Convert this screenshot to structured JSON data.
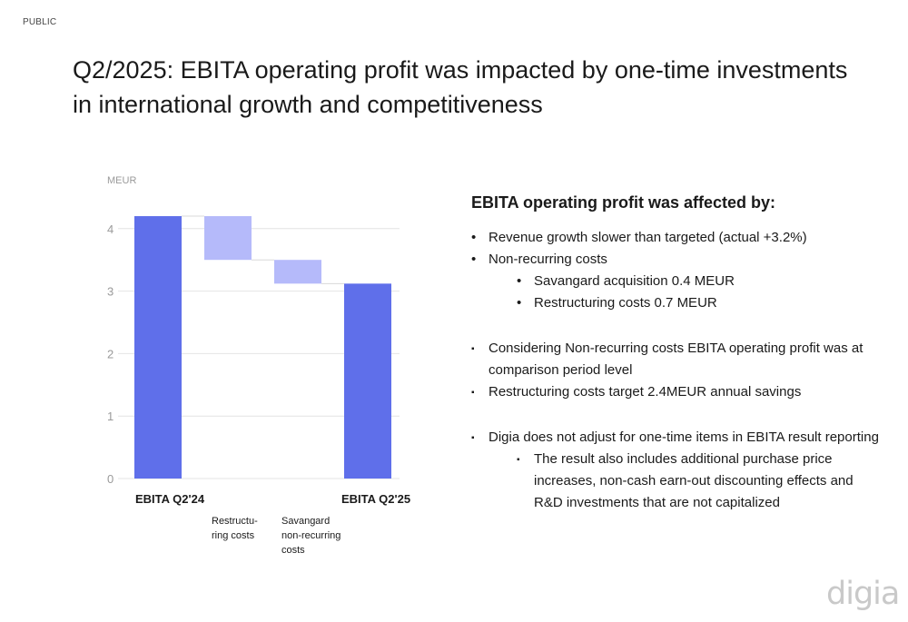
{
  "classification": "PUBLIC",
  "title": "Q2/2025: EBITA operating profit was impacted by one-time investments in international growth and competitiveness",
  "chart_data": {
    "type": "bar",
    "subtype": "waterfall",
    "unit_label": "MEUR",
    "ylim": [
      0,
      4.3
    ],
    "yticks": [
      0,
      1,
      2,
      3,
      4
    ],
    "grid": true,
    "legend": "none",
    "categories": [
      {
        "label": "EBITA Q2'24",
        "lines": [
          "EBITA Q2'24"
        ],
        "kind": "total",
        "start": 0,
        "end": 4.2,
        "color": "#5f6fea"
      },
      {
        "label": "Restructuring costs",
        "lines": [
          "Restructu-",
          "ring costs"
        ],
        "kind": "decrease",
        "start": 4.2,
        "end": 3.5,
        "color": "#b5bafa"
      },
      {
        "label": "Savangard non-recurring costs",
        "lines": [
          "Savangard",
          "non-recurring",
          "costs"
        ],
        "kind": "decrease",
        "start": 3.5,
        "end": 3.12,
        "color": "#b5bafa"
      },
      {
        "label": "EBITA Q2'25",
        "lines": [
          "EBITA Q2'25"
        ],
        "kind": "total",
        "start": 0,
        "end": 3.12,
        "color": "#5f6fea"
      }
    ]
  },
  "panel": {
    "heading": "EBITA operating profit was affected by:",
    "groups": [
      [
        {
          "marker": "•",
          "level": 1,
          "text": "Revenue growth slower than targeted (actual +3.2%)"
        },
        {
          "marker": "•",
          "level": 1,
          "text": "Non-recurring costs"
        },
        {
          "marker": "•",
          "level": 2,
          "text": "Savangard acquisition 0.4 MEUR"
        },
        {
          "marker": "•",
          "level": 2,
          "text": "Restructuring costs 0.7 MEUR"
        }
      ],
      [
        {
          "marker": "▪",
          "level": 1,
          "text": "Considering Non-recurring costs EBITA operating profit was at comparison period level"
        },
        {
          "marker": "▪",
          "level": 1,
          "text": "Restructuring costs target 2.4MEUR annual savings"
        }
      ],
      [
        {
          "marker": "▪",
          "level": 1,
          "text": "Digia does not adjust for one-time items in EBITA result reporting"
        },
        {
          "marker": "▪",
          "level": 2,
          "text": "The result also includes additional purchase price increases, non-cash earn-out discounting effects and R&D investments that are not capitalized"
        }
      ]
    ]
  },
  "logo": {
    "text": "digia",
    "color": "#c9c9c9"
  }
}
